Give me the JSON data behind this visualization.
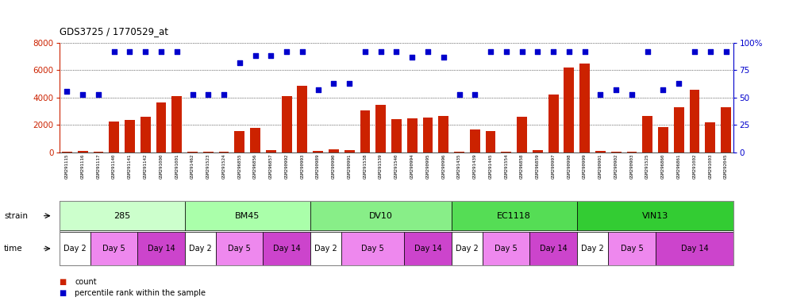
{
  "title": "GDS3725 / 1770529_at",
  "samples": [
    "GSM291115",
    "GSM291116",
    "GSM291117",
    "GSM291140",
    "GSM291141",
    "GSM291142",
    "GSM291000",
    "GSM291001",
    "GSM291462",
    "GSM291523",
    "GSM291524",
    "GSM296855",
    "GSM296856",
    "GSM296857",
    "GSM290992",
    "GSM290993",
    "GSM290989",
    "GSM290990",
    "GSM290991",
    "GSM291538",
    "GSM291539",
    "GSM291540",
    "GSM290994",
    "GSM290995",
    "GSM290996",
    "GSM291435",
    "GSM291439",
    "GSM291445",
    "GSM291554",
    "GSM296858",
    "GSM296859",
    "GSM290997",
    "GSM290998",
    "GSM290999",
    "GSM290901",
    "GSM290902",
    "GSM290903",
    "GSM291525",
    "GSM296860",
    "GSM296861",
    "GSM291002",
    "GSM291003",
    "GSM292045"
  ],
  "counts": [
    50,
    120,
    80,
    2250,
    2350,
    2600,
    3650,
    4100,
    80,
    60,
    60,
    1550,
    1800,
    180,
    4100,
    4850,
    130,
    230,
    200,
    3050,
    3500,
    2450,
    2500,
    2550,
    2650,
    60,
    1700,
    1550,
    60,
    2600,
    170,
    4200,
    6200,
    6500,
    120,
    80,
    80,
    2650,
    1850,
    3300,
    4600,
    2200,
    3300
  ],
  "percentiles": [
    56,
    53,
    53,
    92,
    92,
    92,
    92,
    92,
    53,
    53,
    53,
    82,
    88,
    88,
    92,
    92,
    57,
    63,
    63,
    92,
    92,
    92,
    87,
    92,
    87,
    53,
    53,
    92,
    92,
    92,
    92,
    92,
    92,
    92,
    53,
    57,
    53,
    92,
    57,
    63,
    92,
    92,
    92
  ],
  "strain_groups": [
    {
      "label": "285",
      "start": 0,
      "end": 7,
      "color": "#ccffcc"
    },
    {
      "label": "BM45",
      "start": 8,
      "end": 15,
      "color": "#aaffaa"
    },
    {
      "label": "DV10",
      "start": 16,
      "end": 24,
      "color": "#88ee88"
    },
    {
      "label": "EC1118",
      "start": 25,
      "end": 32,
      "color": "#55dd55"
    },
    {
      "label": "VIN13",
      "start": 33,
      "end": 42,
      "color": "#33cc33"
    }
  ],
  "time_groups": [
    {
      "label": "Day 2",
      "start": 0,
      "end": 1,
      "color": "#ffffff"
    },
    {
      "label": "Day 5",
      "start": 2,
      "end": 4,
      "color": "#ee88ee"
    },
    {
      "label": "Day 14",
      "start": 5,
      "end": 7,
      "color": "#cc44cc"
    },
    {
      "label": "Day 2",
      "start": 8,
      "end": 9,
      "color": "#ffffff"
    },
    {
      "label": "Day 5",
      "start": 10,
      "end": 12,
      "color": "#ee88ee"
    },
    {
      "label": "Day 14",
      "start": 13,
      "end": 15,
      "color": "#cc44cc"
    },
    {
      "label": "Day 2",
      "start": 16,
      "end": 17,
      "color": "#ffffff"
    },
    {
      "label": "Day 5",
      "start": 18,
      "end": 21,
      "color": "#ee88ee"
    },
    {
      "label": "Day 14",
      "start": 22,
      "end": 24,
      "color": "#cc44cc"
    },
    {
      "label": "Day 2",
      "start": 25,
      "end": 26,
      "color": "#ffffff"
    },
    {
      "label": "Day 5",
      "start": 27,
      "end": 29,
      "color": "#ee88ee"
    },
    {
      "label": "Day 14",
      "start": 30,
      "end": 32,
      "color": "#cc44cc"
    },
    {
      "label": "Day 2",
      "start": 33,
      "end": 34,
      "color": "#ffffff"
    },
    {
      "label": "Day 5",
      "start": 35,
      "end": 37,
      "color": "#ee88ee"
    },
    {
      "label": "Day 14",
      "start": 38,
      "end": 42,
      "color": "#cc44cc"
    }
  ],
  "bar_color": "#cc2200",
  "dot_color": "#0000cc",
  "ylim_left": [
    0,
    8000
  ],
  "ylim_right": [
    0,
    100
  ],
  "yticks_left": [
    0,
    2000,
    4000,
    6000,
    8000
  ],
  "yticks_right": [
    0,
    25,
    50,
    75,
    100
  ],
  "ytick_right_labels": [
    "0",
    "25",
    "50",
    "75",
    "100%"
  ],
  "grid_values": [
    2000,
    4000,
    6000
  ],
  "plot_bg": "#ffffff",
  "fig_bg": "#ffffff"
}
